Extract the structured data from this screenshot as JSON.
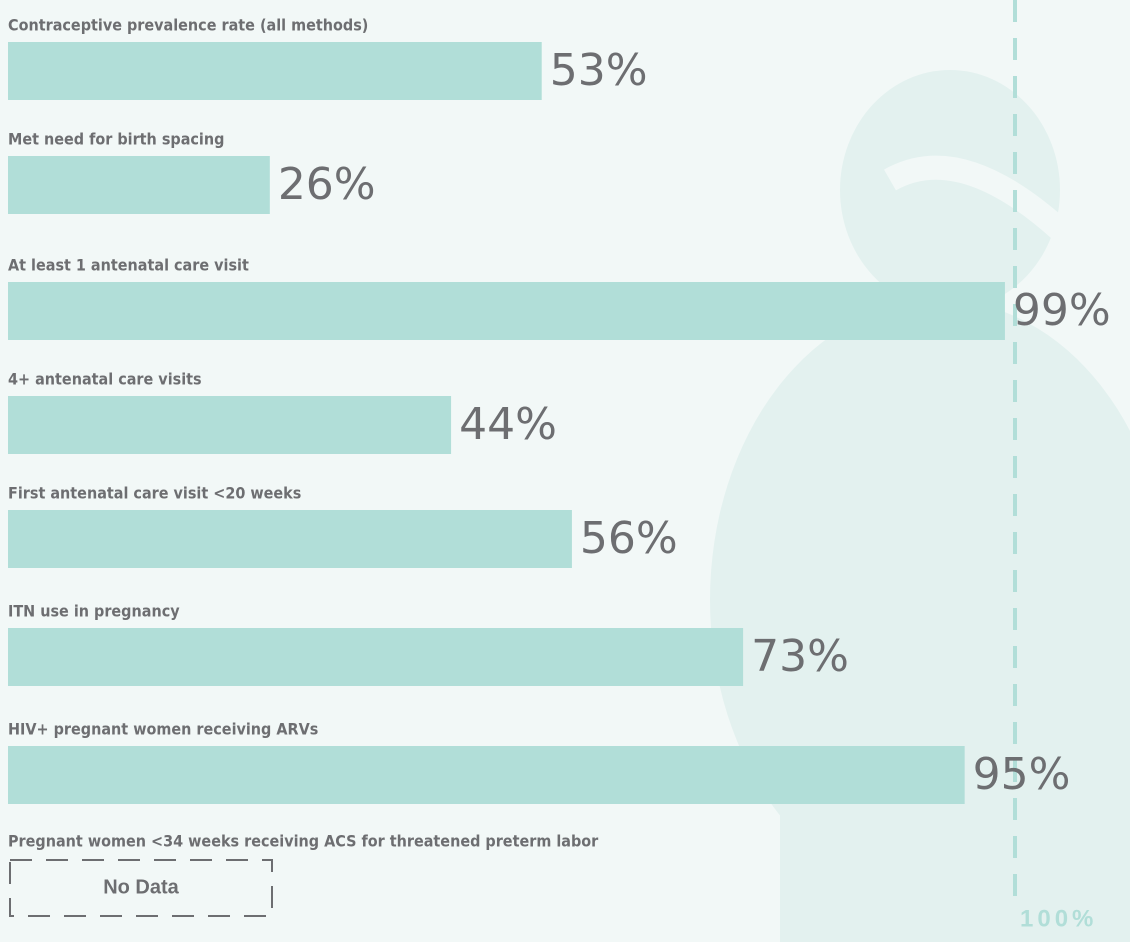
{
  "chart_data": {
    "type": "bar",
    "orientation": "horizontal",
    "categories": [
      "Contraceptive prevalence rate (all methods)",
      "Met need for birth spacing",
      "At least 1 antenatal care visit",
      "4+ antenatal care visits",
      "First antenatal care visit <20 weeks",
      "ITN use in pregnancy",
      "HIV+ pregnant women receiving ARVs",
      "Pregnant women <34 weeks receiving ACS for threatened preterm labor"
    ],
    "values": [
      53,
      26,
      99,
      44,
      56,
      73,
      95,
      null
    ],
    "value_labels": [
      "53%",
      "26%",
      "99%",
      "44%",
      "56%",
      "73%",
      "95%",
      null
    ],
    "missing_label": "No Data",
    "color": "#b1ded8",
    "xlim": [
      0,
      100
    ],
    "reference_line": {
      "value": 100,
      "label": "100%"
    }
  }
}
